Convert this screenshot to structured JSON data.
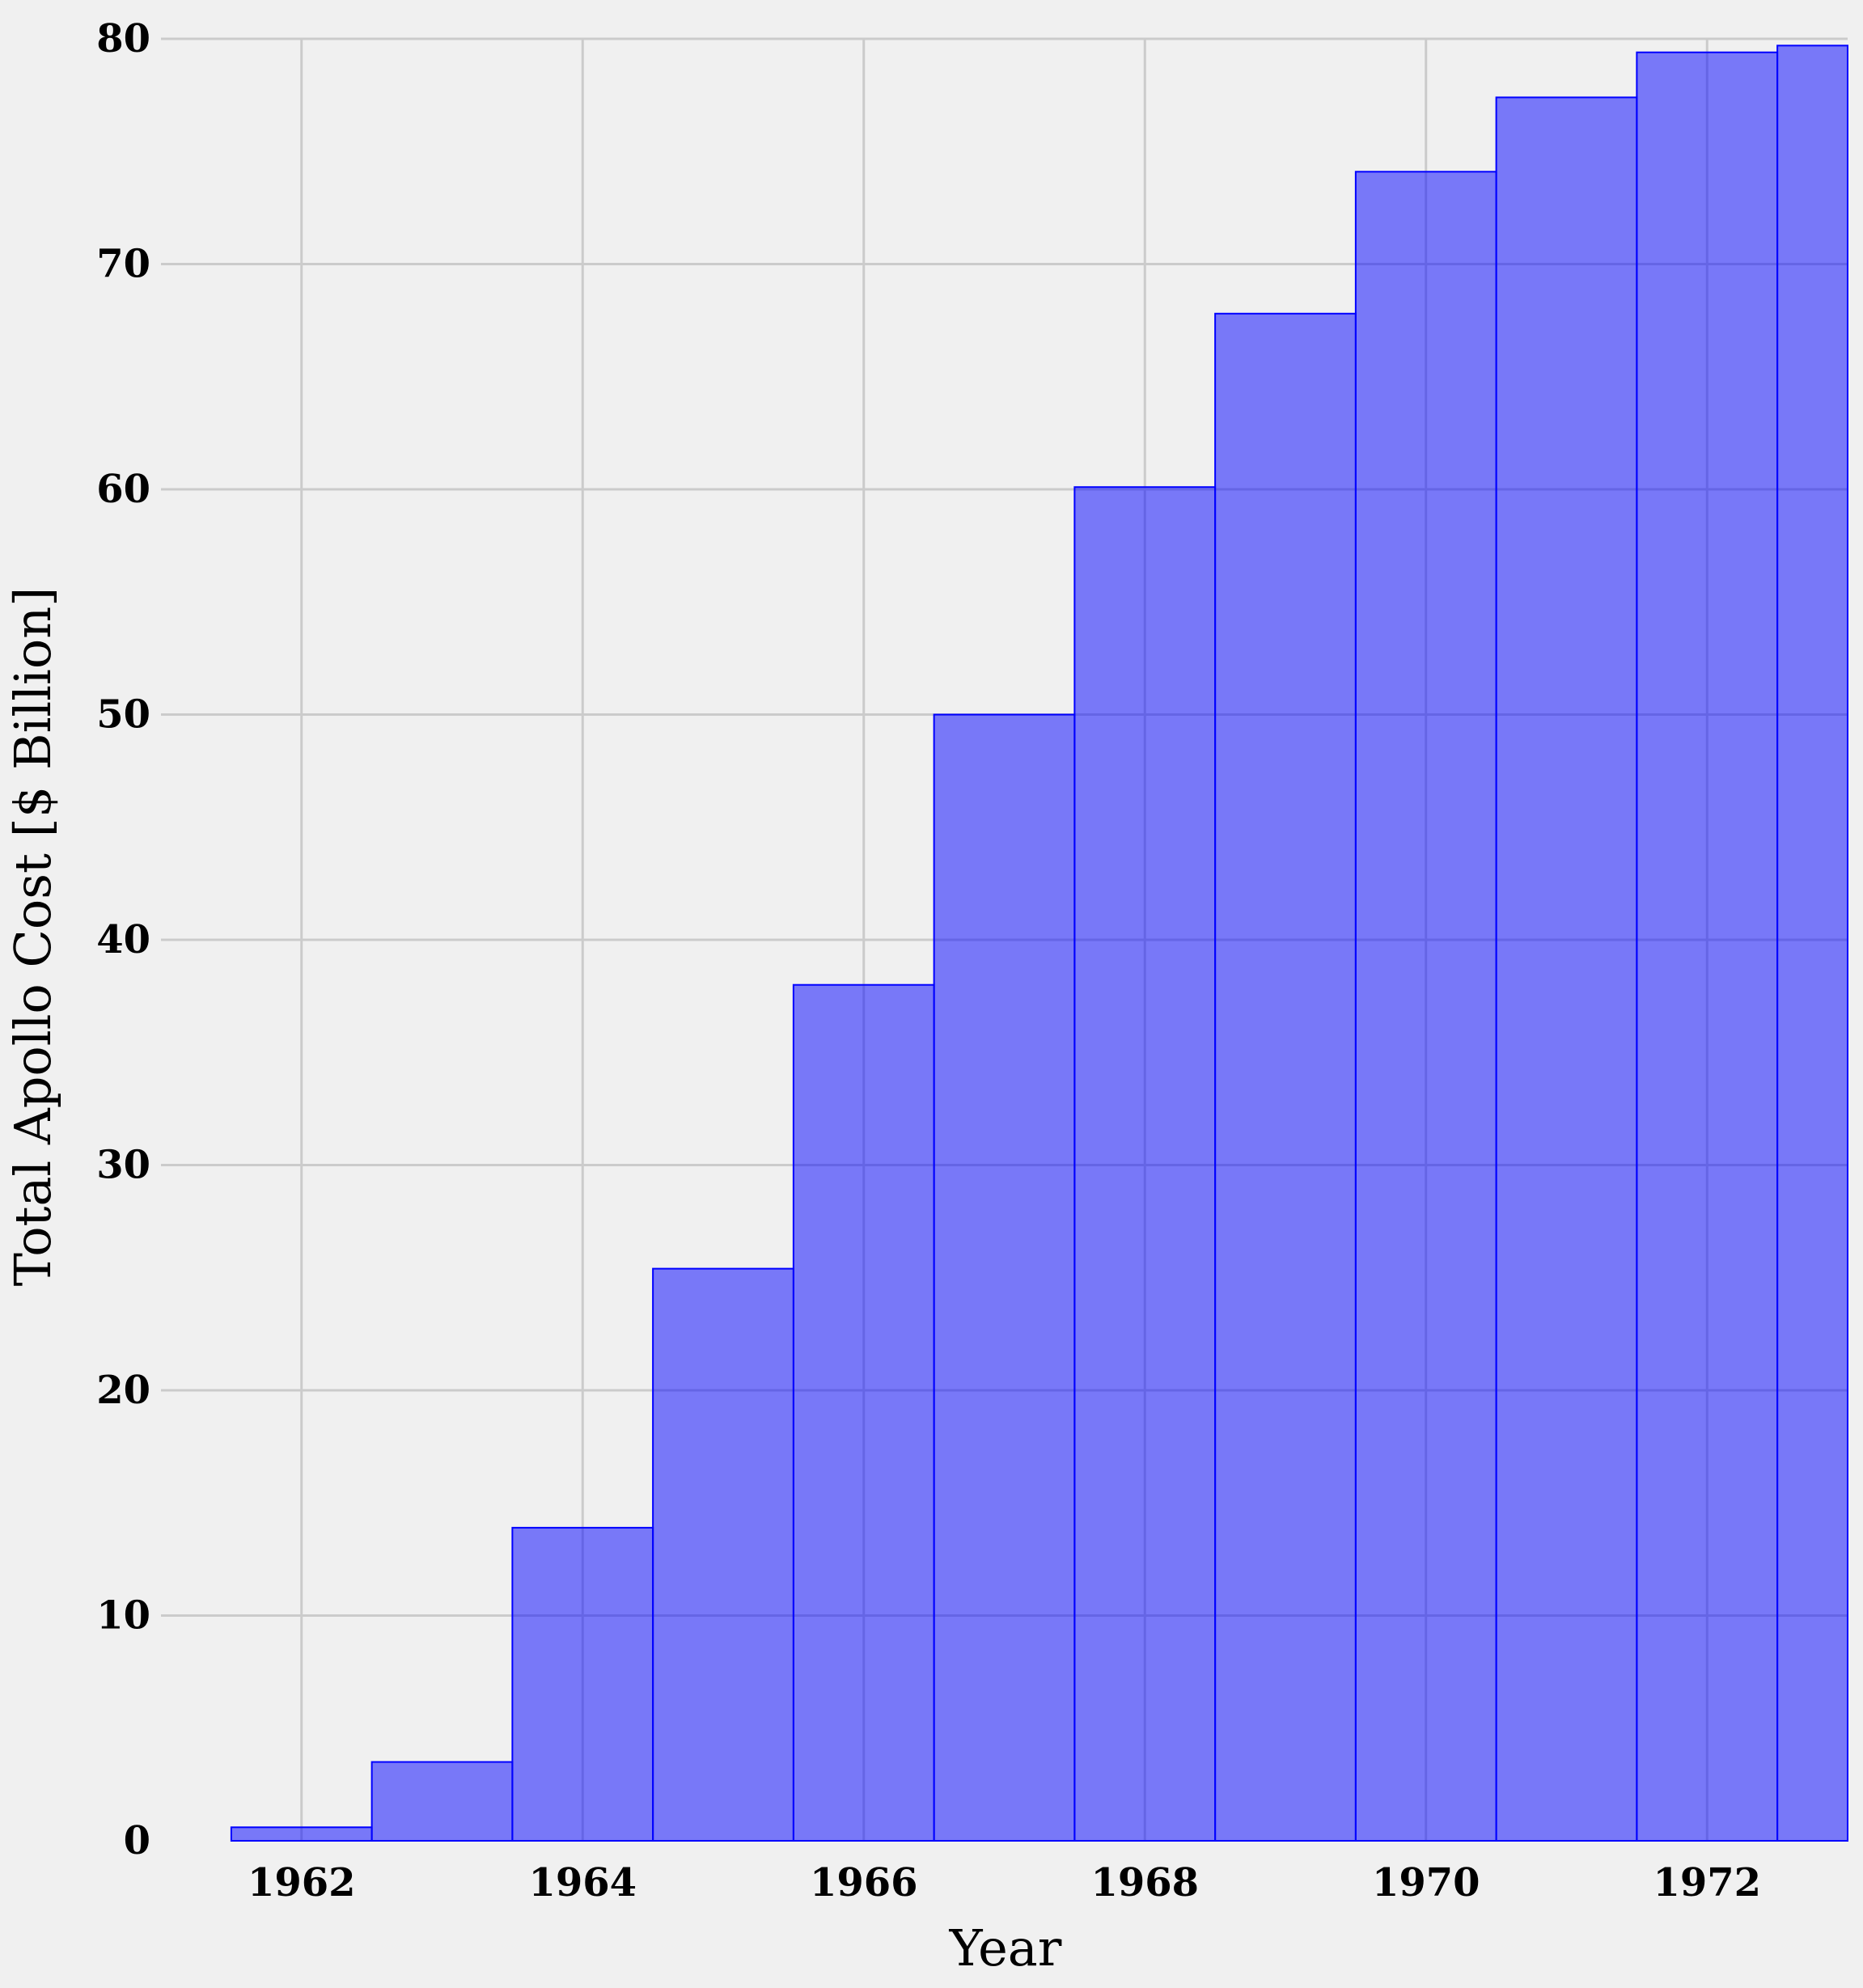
{
  "chart_data": {
    "type": "bar",
    "title": "",
    "xlabel": "Year",
    "ylabel": "Total Apollo Cost [$ Billion]",
    "x": [
      1962,
      1963,
      1964,
      1965,
      1966,
      1967,
      1968,
      1969,
      1970,
      1971,
      1972,
      1973
    ],
    "values": [
      0.6,
      3.5,
      13.9,
      25.4,
      38.0,
      50.0,
      60.1,
      67.8,
      74.1,
      77.4,
      79.4,
      79.7
    ],
    "bar_width": 1,
    "xlim": [
      1961,
      1973
    ],
    "ylim": [
      0,
      80
    ],
    "xticks": [
      1962,
      1964,
      1966,
      1968,
      1970,
      1972
    ],
    "yticks": [
      0,
      10,
      20,
      30,
      40,
      50,
      60,
      70,
      80
    ],
    "grid": true,
    "colors": {
      "bar_fill": "#0000ff",
      "bar_fill_opacity": 0.5,
      "bar_edge": "#0000ff",
      "background": "#f0f0f0",
      "grid": "#cbcbcb"
    }
  }
}
